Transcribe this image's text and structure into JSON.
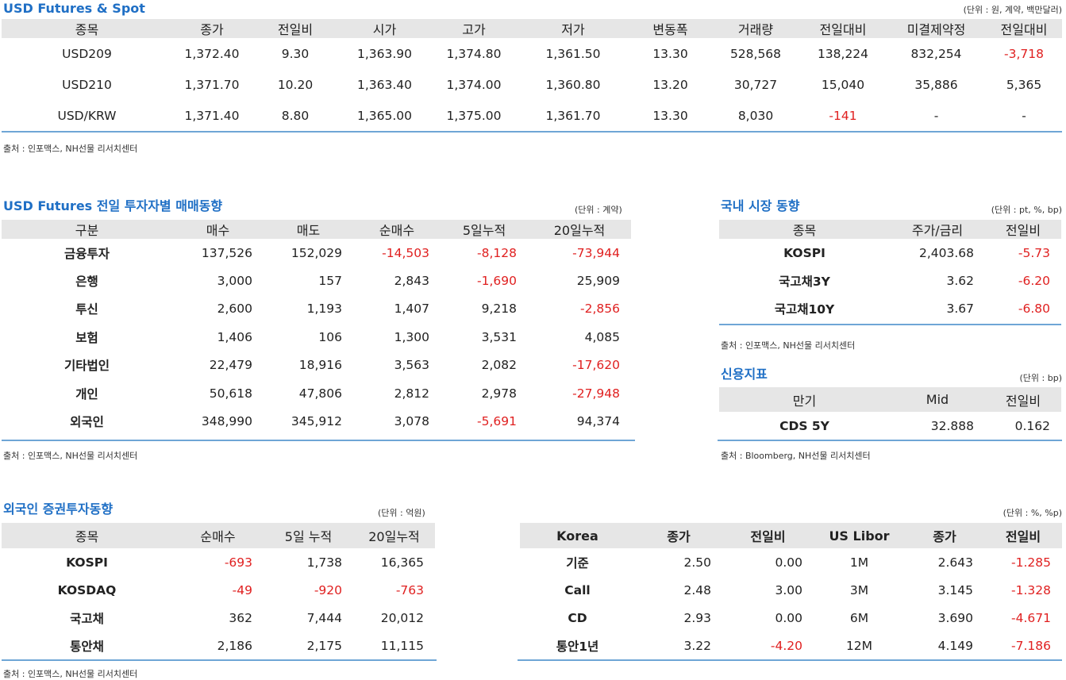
{
  "spot": {
    "title": "USD Futures & Spot",
    "unit": "(단위 : 원, 계약, 백만달러)",
    "headers": [
      "종목",
      "종가",
      "전일비",
      "시가",
      "고가",
      "저가",
      "변동폭",
      "거래량",
      "전일대비",
      "미결제약정",
      "전일대비"
    ],
    "rows": [
      [
        "USD209",
        "1,372.40",
        "9.30",
        "1,363.90",
        "1,374.80",
        "1,361.50",
        "13.30",
        "528,568",
        "138,224",
        "832,254",
        "-3,718"
      ],
      [
        "USD210",
        "1,371.70",
        "10.20",
        "1,363.40",
        "1,374.00",
        "1,360.80",
        "13.20",
        "30,727",
        "15,040",
        "35,886",
        "5,365"
      ],
      [
        "USD/KRW",
        "1,371.40",
        "8.80",
        "1,365.00",
        "1,375.00",
        "1,361.70",
        "13.30",
        "8,030",
        "-141",
        "-",
        "-"
      ]
    ],
    "source": "출처 : 인포맥스, NH선물 리서치센터"
  },
  "investor": {
    "title": "USD Futures 전일 투자자별 매매동향",
    "unit": "(단위 : 계약)",
    "headers": [
      "구분",
      "매수",
      "매도",
      "순매수",
      "5일누적",
      "20일누적"
    ],
    "rows": [
      [
        "금융투자",
        "137,526",
        "152,029",
        "-14,503",
        "-8,128",
        "-73,944"
      ],
      [
        "은행",
        "3,000",
        "157",
        "2,843",
        "-1,690",
        "25,909"
      ],
      [
        "투신",
        "2,600",
        "1,193",
        "1,407",
        "9,218",
        "-2,856"
      ],
      [
        "보험",
        "1,406",
        "106",
        "1,300",
        "3,531",
        "4,085"
      ],
      [
        "기타법인",
        "22,479",
        "18,916",
        "3,563",
        "2,082",
        "-17,620"
      ],
      [
        "개인",
        "50,618",
        "47,806",
        "2,812",
        "2,978",
        "-27,948"
      ],
      [
        "외국인",
        "348,990",
        "345,912",
        "3,078",
        "-5,691",
        "94,374"
      ]
    ],
    "source": "출처 : 인포맥스, NH선물 리서치센터"
  },
  "domestic": {
    "title": "국내 시장 동향",
    "unit": "(단위 : pt, %, bp)",
    "headers": [
      "종목",
      "주가/금리",
      "전일비"
    ],
    "rows": [
      [
        "KOSPI",
        "2,403.68",
        "-5.73"
      ],
      [
        "국고채3Y",
        "3.62",
        "-6.20"
      ],
      [
        "국고채10Y",
        "3.67",
        "-6.80"
      ]
    ],
    "source": "출처 : 인포맥스, NH선물 리서치센터"
  },
  "credit": {
    "title": "신용지표",
    "unit": "(단위 : bp)",
    "headers": [
      "만기",
      "Mid",
      "전일비"
    ],
    "rows": [
      [
        "CDS 5Y",
        "32.888",
        "0.162"
      ]
    ],
    "source": "출처 : Bloomberg, NH선물 리서치센터"
  },
  "foreign": {
    "title": "외국인 증권투자동향",
    "unit": "(단위 : 억원)",
    "headers": [
      "종목",
      "순매수",
      "5일 누적",
      "20일누적"
    ],
    "rows": [
      [
        "KOSPI",
        "-693",
        "1,738",
        "16,365"
      ],
      [
        "KOSDAQ",
        "-49",
        "-920",
        "-763"
      ],
      [
        "국고채",
        "362",
        "7,444",
        "20,012"
      ],
      [
        "통안채",
        "2,186",
        "2,175",
        "11,115"
      ]
    ],
    "source": "출처 : 인포맥스, NH선물 리서치센터"
  },
  "rates": {
    "unit": "(단위 : %, %p)",
    "headers": [
      "Korea",
      "종가",
      "전일비",
      "US Libor",
      "종가",
      "전일비"
    ],
    "rows": [
      [
        "기준",
        "2.50",
        "0.00",
        "1M",
        "2.643",
        "-1.285"
      ],
      [
        "Call",
        "2.48",
        "3.00",
        "3M",
        "3.145",
        "-1.328"
      ],
      [
        "CD",
        "2.93",
        "0.00",
        "6M",
        "3.690",
        "-4.671"
      ],
      [
        "통안1년",
        "3.22",
        "-4.20",
        "12M",
        "4.149",
        "-7.186"
      ]
    ]
  },
  "colors": {
    "title": "#1f6fc5",
    "negative": "#e02020",
    "header_bg": "#e6e6e6",
    "rule": "#6fa6d6"
  }
}
